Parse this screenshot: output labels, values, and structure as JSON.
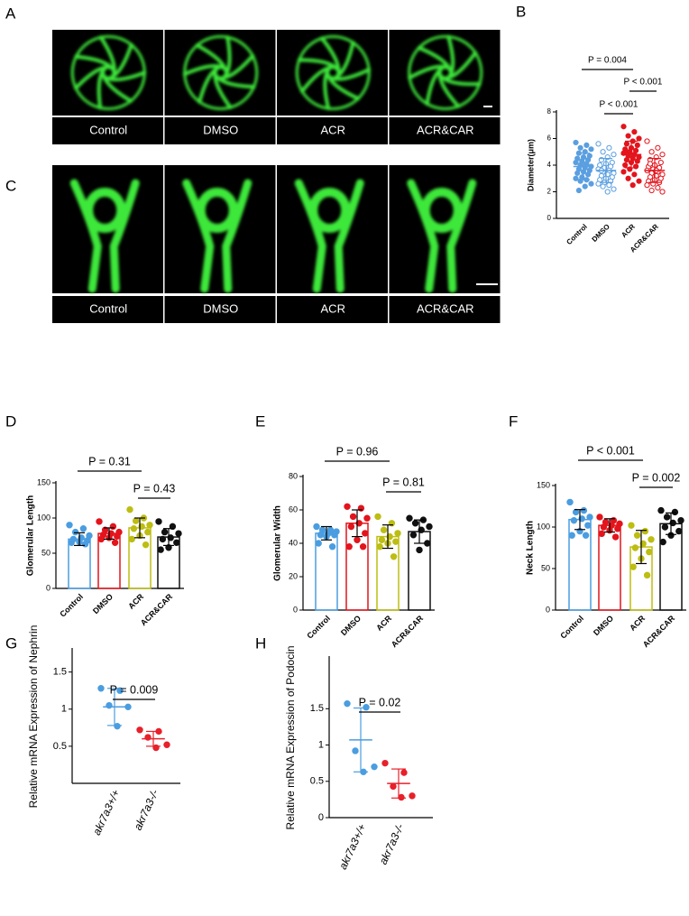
{
  "image_panels": [
    {
      "label": "A",
      "captions": [
        "Control",
        "DMSO",
        "ACR",
        "ACR&CAR"
      ]
    },
    {
      "label": "C",
      "captions": [
        "Control",
        "DMSO",
        "ACR",
        "ACR&CAR"
      ]
    }
  ],
  "chart_data": [
    {
      "type": "dot",
      "panel_label": "B",
      "ylabel": "Diameter(μm)",
      "categories": [
        "Control",
        "DMSO",
        "ACR",
        "ACR&CAR"
      ],
      "colors": [
        "#5a9fe0",
        "#5a9fe0",
        "#e3141c",
        "#e3141c"
      ],
      "filled": [
        true,
        false,
        true,
        false
      ],
      "ylim": [
        0,
        8
      ],
      "yticks": [
        0,
        2,
        4,
        6,
        8
      ],
      "values": [
        3.9,
        3.6,
        4.8,
        3.6
      ],
      "errors": [
        1.0,
        0.9,
        1.0,
        0.9
      ],
      "points": [
        [
          5.7,
          5.5,
          5.3,
          5.2,
          5.0,
          4.9,
          4.7,
          4.6,
          4.5,
          4.4,
          4.3,
          4.2,
          4.1,
          4.0,
          3.9,
          3.8,
          3.7,
          3.6,
          3.5,
          3.4,
          3.3,
          3.1,
          3.0,
          2.9,
          2.8,
          2.6,
          2.4,
          2.1
        ],
        [
          5.6,
          5.3,
          5.0,
          4.8,
          4.6,
          4.4,
          4.2,
          4.1,
          4.0,
          3.9,
          3.8,
          3.7,
          3.6,
          3.5,
          3.4,
          3.3,
          3.2,
          3.1,
          3.0,
          2.9,
          2.8,
          2.7,
          2.6,
          2.5,
          2.4,
          2.2,
          2.0,
          3.6
        ],
        [
          6.9,
          6.5,
          6.2,
          6.0,
          5.8,
          5.6,
          5.5,
          5.3,
          5.2,
          5.1,
          5.0,
          4.9,
          4.8,
          4.7,
          4.6,
          4.5,
          4.4,
          4.3,
          4.2,
          4.0,
          3.9,
          3.7,
          3.5,
          3.3,
          3.0,
          2.8,
          2.5,
          5.0
        ],
        [
          5.8,
          5.3,
          5.0,
          4.8,
          4.6,
          4.4,
          4.2,
          4.0,
          3.9,
          3.8,
          3.7,
          3.6,
          3.5,
          3.4,
          3.3,
          3.2,
          3.1,
          3.0,
          2.9,
          2.8,
          2.7,
          2.6,
          2.5,
          2.3,
          2.1,
          2.0,
          3.6,
          4.1
        ]
      ],
      "comparisons": [
        {
          "label": "P = 0.004",
          "groups": [
            "Control",
            "ACR"
          ]
        },
        {
          "label": "P < 0.001",
          "groups": [
            "ACR",
            "ACR&CAR"
          ]
        },
        {
          "label": "P < 0.001",
          "groups": [
            "DMSO",
            "ACR"
          ]
        }
      ]
    },
    {
      "type": "bar",
      "panel_label": "D",
      "ylabel": "Glomerular Length",
      "categories": [
        "Control",
        "DMSO",
        "ACR",
        "ACR&CAR"
      ],
      "colors": [
        "#4a9de0",
        "#e3141c",
        "#bdbd12",
        "#111111"
      ],
      "ylim": [
        0,
        150
      ],
      "yticks": [
        0,
        50,
        100,
        150
      ],
      "values": [
        70,
        78,
        86,
        73
      ],
      "errors": [
        9,
        8,
        14,
        12
      ],
      "points": [
        [
          90,
          85,
          80,
          75,
          72,
          70,
          68,
          66,
          65,
          63
        ],
        [
          95,
          88,
          83,
          80,
          78,
          76,
          74,
          72,
          70,
          65
        ],
        [
          112,
          100,
          96,
          90,
          88,
          85,
          80,
          75,
          70,
          62
        ],
        [
          95,
          88,
          80,
          78,
          72,
          70,
          65,
          58,
          55
        ]
      ],
      "comparisons": [
        {
          "label": "P = 0.31",
          "groups": [
            "Control",
            "ACR"
          ]
        },
        {
          "label": "P = 0.43",
          "groups": [
            "ACR",
            "ACR&CAR"
          ]
        }
      ]
    },
    {
      "type": "bar",
      "panel_label": "E",
      "ylabel": "Glomerular Width",
      "categories": [
        "Control",
        "DMSO",
        "ACR",
        "ACR&CAR"
      ],
      "colors": [
        "#4a9de0",
        "#e3141c",
        "#bdbd12",
        "#111111"
      ],
      "ylim": [
        0,
        80
      ],
      "yticks": [
        0,
        20,
        40,
        60,
        80
      ],
      "values": [
        46,
        52,
        44,
        47
      ],
      "errors": [
        4,
        8,
        7,
        7
      ],
      "points": [
        [
          50,
          48,
          48,
          47,
          46,
          45,
          45,
          44,
          40,
          38
        ],
        [
          62,
          61,
          56,
          55,
          52,
          50,
          46,
          42,
          38,
          38
        ],
        [
          56,
          52,
          48,
          46,
          44,
          42,
          41,
          40,
          38,
          32
        ],
        [
          55,
          54,
          52,
          50,
          48,
          45,
          40,
          36
        ]
      ],
      "comparisons": [
        {
          "label": "P = 0.96",
          "groups": [
            "Control",
            "ACR"
          ]
        },
        {
          "label": "P = 0.81",
          "groups": [
            "ACR",
            "ACR&CAR"
          ]
        }
      ]
    },
    {
      "type": "bar",
      "panel_label": "F",
      "ylabel": "Neck Length",
      "categories": [
        "Control",
        "DMSO",
        "ACR",
        "ACR&CAR"
      ],
      "colors": [
        "#4a9de0",
        "#e3141c",
        "#bdbd12",
        "#111111"
      ],
      "ylim": [
        0,
        150
      ],
      "yticks": [
        0,
        50,
        100,
        150
      ],
      "values": [
        109,
        102,
        76,
        104
      ],
      "errors": [
        12,
        8,
        20,
        13
      ],
      "points": [
        [
          130,
          120,
          118,
          112,
          110,
          108,
          102,
          95,
          90,
          90
        ],
        [
          112,
          108,
          106,
          104,
          102,
          100,
          98,
          96,
          92,
          88
        ],
        [
          102,
          95,
          90,
          85,
          80,
          75,
          70,
          62,
          52,
          42
        ],
        [
          120,
          118,
          112,
          108,
          105,
          100,
          95,
          90,
          82
        ]
      ],
      "comparisons": [
        {
          "label": "P < 0.001",
          "groups": [
            "Control",
            "ACR"
          ]
        },
        {
          "label": "P = 0.002",
          "groups": [
            "ACR",
            "ACR&CAR"
          ]
        }
      ]
    },
    {
      "type": "dot",
      "panel_label": "G",
      "ylabel": "Relative mRNA Expression of Nephrin",
      "categories": [
        "akr7a3+/+",
        "akr7a3-/-"
      ],
      "colors": [
        "#4a9de0",
        "#e8202a"
      ],
      "filled": [
        true,
        true
      ],
      "ylim": [
        0,
        1.8
      ],
      "yticks": [
        0.5,
        1,
        1.5
      ],
      "values": [
        1.03,
        0.6
      ],
      "errors": [
        0.25,
        0.1
      ],
      "points": [
        [
          1.28,
          1.25,
          1.05,
          1.03,
          0.77
        ],
        [
          0.72,
          0.7,
          0.62,
          0.52,
          0.48
        ]
      ],
      "comparisons": [
        {
          "label": "P = 0.009",
          "groups": [
            "akr7a3+/+",
            "akr7a3-/-"
          ]
        }
      ]
    },
    {
      "type": "dot",
      "panel_label": "H",
      "ylabel": "Relative mRNA Expression of Podocin",
      "categories": [
        "akr7a3+/+",
        "akr7a3-/-"
      ],
      "colors": [
        "#4a9de0",
        "#e8202a"
      ],
      "filled": [
        true,
        true
      ],
      "ylim": [
        0,
        2.2
      ],
      "yticks": [
        0,
        0.5,
        1,
        1.5
      ],
      "values": [
        1.07,
        0.47
      ],
      "errors": [
        0.44,
        0.2
      ],
      "points": [
        [
          1.57,
          1.52,
          0.92,
          0.7,
          0.63
        ],
        [
          0.75,
          0.62,
          0.43,
          0.3,
          0.28
        ]
      ],
      "comparisons": [
        {
          "label": "P = 0.02",
          "groups": [
            "akr7a3+/+",
            "akr7a3-/-"
          ]
        }
      ]
    }
  ]
}
